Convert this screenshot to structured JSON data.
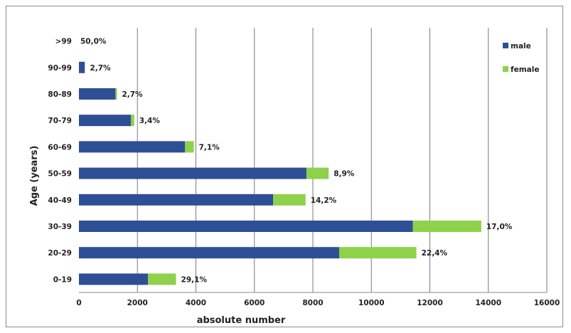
{
  "chart_data": {
    "type": "bar",
    "orientation": "horizontal",
    "stacked": true,
    "title": "",
    "xlabel": "absolute number",
    "ylabel": "Age (years)",
    "xlim": [
      0,
      16000
    ],
    "x_ticks": [
      0,
      2000,
      4000,
      6000,
      8000,
      10000,
      12000,
      14000,
      16000
    ],
    "grid": "vertical",
    "legend_position": "top-right",
    "categories": [
      ">99",
      "90-99",
      "80-89",
      "70-79",
      "60-69",
      "50-59",
      "40-49",
      "30-39",
      "20-29",
      "0-19"
    ],
    "series": [
      {
        "name": "male",
        "color": "#2e4f96",
        "values": [
          0,
          200,
          1250,
          1780,
          3630,
          7780,
          6640,
          11420,
          8900,
          2360
        ]
      },
      {
        "name": "female",
        "color": "#8ed14b",
        "values": [
          0,
          5,
          50,
          110,
          300,
          760,
          1110,
          2340,
          2640,
          960
        ]
      }
    ],
    "data_labels": [
      "50,0%",
      "2,7%",
      "2,7%",
      "3,4%",
      "7,1%",
      "8,9%",
      "14,2%",
      "17,0%",
      "22,4%",
      "29,1%"
    ]
  }
}
